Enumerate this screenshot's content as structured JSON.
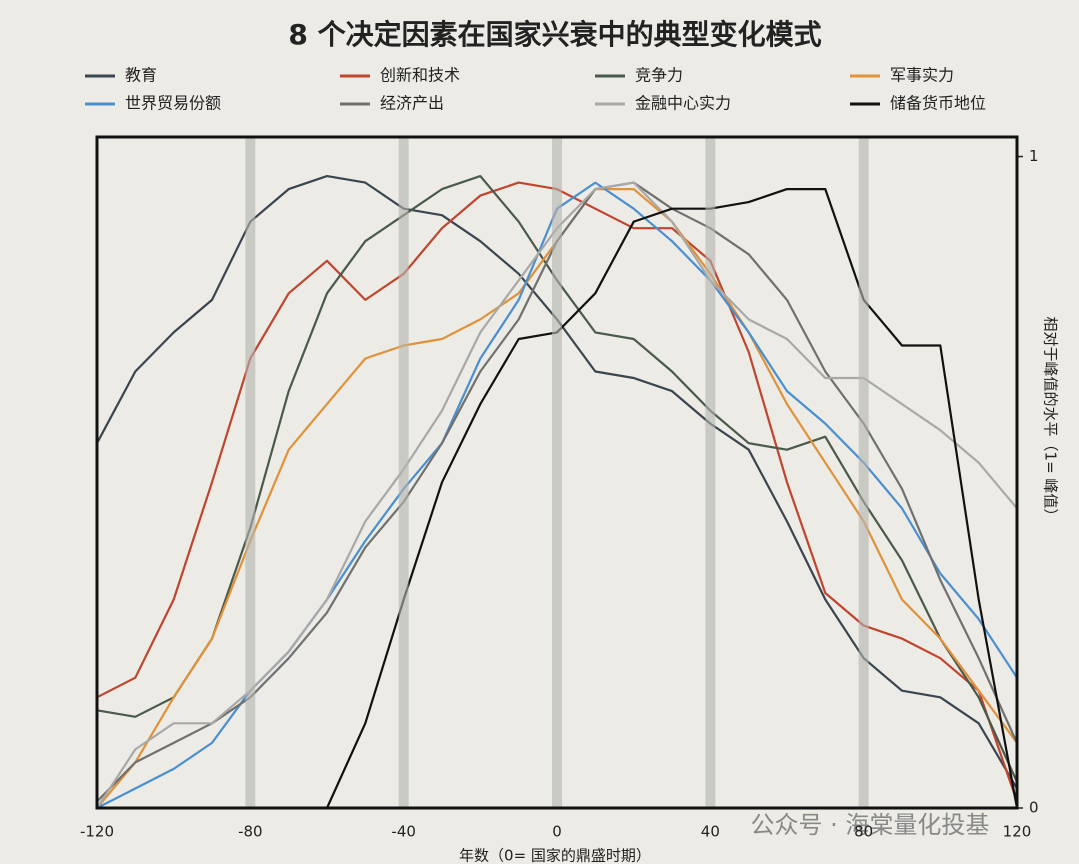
{
  "chart_data": {
    "type": "line",
    "title": "8 个决定因素在国家兴衰中的典型变化模式",
    "x_label": "年数（0= 国家的鼎盛时期）",
    "y_label": "相对于峰值的水平（1= 峰值）",
    "annotations": [
      "公众号 · 海棠量化投基"
    ],
    "x": [
      -120,
      -110,
      -100,
      -90,
      -80,
      -70,
      -60,
      -50,
      -40,
      -30,
      -20,
      -10,
      0,
      10,
      20,
      30,
      40,
      50,
      60,
      70,
      80,
      90,
      100,
      110,
      120
    ],
    "xlim": [
      -120,
      120
    ],
    "xticks": [
      -120,
      -80,
      -40,
      0,
      40,
      80,
      120
    ],
    "ylim": [
      0,
      1.03
    ],
    "yticks": [
      0,
      1
    ],
    "grid": true,
    "series": [
      {
        "name": "教育",
        "color": "#3a4550",
        "values": [
          0.56,
          0.67,
          0.73,
          0.78,
          0.9,
          0.95,
          0.97,
          0.96,
          0.92,
          0.91,
          0.87,
          0.82,
          0.75,
          0.67,
          0.66,
          0.64,
          0.59,
          0.55,
          0.44,
          0.32,
          0.23,
          0.18,
          0.17,
          0.13,
          0.03
        ]
      },
      {
        "name": "创新和技术",
        "color": "#c0442e",
        "values": [
          0.17,
          0.2,
          0.32,
          0.5,
          0.69,
          0.79,
          0.84,
          0.78,
          0.82,
          0.89,
          0.94,
          0.96,
          0.95,
          0.92,
          0.89,
          0.89,
          0.84,
          0.7,
          0.5,
          0.33,
          0.28,
          0.26,
          0.23,
          0.18,
          0.01
        ]
      },
      {
        "name": "竞争力",
        "color": "#4a5a4a",
        "values": [
          0.15,
          0.14,
          0.17,
          0.26,
          0.43,
          0.64,
          0.79,
          0.87,
          0.91,
          0.95,
          0.97,
          0.9,
          0.81,
          0.73,
          0.72,
          0.67,
          0.61,
          0.56,
          0.55,
          0.57,
          0.47,
          0.38,
          0.26,
          0.17,
          0.04
        ]
      },
      {
        "name": "军事实力",
        "color": "#e0923a",
        "values": [
          0,
          0.07,
          0.17,
          0.26,
          0.41,
          0.55,
          0.62,
          0.69,
          0.71,
          0.72,
          0.75,
          0.79,
          0.87,
          0.95,
          0.95,
          0.9,
          0.82,
          0.73,
          0.62,
          0.53,
          0.44,
          0.32,
          0.26,
          0.18,
          0.1
        ]
      },
      {
        "name": "世界贸易份额",
        "color": "#4a8fd0",
        "values": [
          0,
          0.03,
          0.06,
          0.1,
          0.18,
          0.24,
          0.32,
          0.41,
          0.49,
          0.56,
          0.69,
          0.78,
          0.92,
          0.96,
          0.92,
          0.87,
          0.81,
          0.73,
          0.64,
          0.59,
          0.53,
          0.46,
          0.36,
          0.29,
          0.2
        ]
      },
      {
        "name": "经济产出",
        "color": "#707070",
        "values": [
          0.01,
          0.07,
          0.1,
          0.13,
          0.17,
          0.23,
          0.3,
          0.4,
          0.47,
          0.56,
          0.67,
          0.75,
          0.87,
          0.95,
          0.96,
          0.92,
          0.89,
          0.85,
          0.78,
          0.67,
          0.59,
          0.49,
          0.35,
          0.23,
          0.1
        ]
      },
      {
        "name": "金融中心实力",
        "color": "#a8a8a8",
        "values": [
          0,
          0.09,
          0.13,
          0.13,
          0.18,
          0.24,
          0.32,
          0.44,
          0.52,
          0.61,
          0.73,
          0.81,
          0.89,
          0.95,
          0.96,
          0.9,
          0.81,
          0.75,
          0.72,
          0.66,
          0.66,
          0.62,
          0.58,
          0.53,
          0.46
        ]
      },
      {
        "name": "储备货币地位",
        "color": "#111111",
        "values": [
          null,
          null,
          null,
          null,
          null,
          null,
          0,
          0.13,
          0.32,
          0.5,
          0.62,
          0.72,
          0.73,
          0.79,
          0.9,
          0.92,
          0.92,
          0.93,
          0.95,
          0.95,
          0.78,
          0.71,
          0.71,
          0.32,
          0
        ]
      }
    ]
  }
}
